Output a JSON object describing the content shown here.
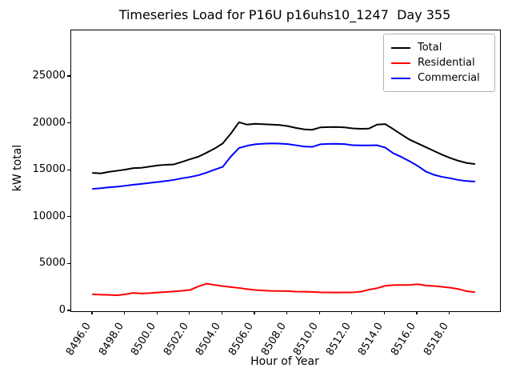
{
  "title": "Timeseries Load for P16U p16uhs10_1247  Day 355",
  "xlabel": "Hour of Year",
  "ylabel": "kW total",
  "legend": [
    {
      "label": "Total",
      "color": "#000000"
    },
    {
      "label": "Residential",
      "color": "#ff0000"
    },
    {
      "label": "Commercial",
      "color": "#0000ff"
    }
  ],
  "chart_data": {
    "type": "line",
    "title": "Timeseries Load for P16U p16uhs10_1247  Day 355",
    "xlabel": "Hour of Year",
    "ylabel": "kW total",
    "legend_position": "upper right",
    "grid": false,
    "xlim": [
      8494.67,
      8521.07
    ],
    "ylim": [
      0,
      29950
    ],
    "x_ticks": [
      {
        "value": 8496,
        "label": "8496.0"
      },
      {
        "value": 8498,
        "label": "8498.0"
      },
      {
        "value": 8500,
        "label": "8500.0"
      },
      {
        "value": 8502,
        "label": "8502.0"
      },
      {
        "value": 8504,
        "label": "8504.0"
      },
      {
        "value": 8506,
        "label": "8506.0"
      },
      {
        "value": 8508,
        "label": "8508.0"
      },
      {
        "value": 8510,
        "label": "8510.0"
      },
      {
        "value": 8512,
        "label": "8512.0"
      },
      {
        "value": 8514,
        "label": "8514.0"
      },
      {
        "value": 8516,
        "label": "8516.0"
      },
      {
        "value": 8518,
        "label": "8518.0"
      }
    ],
    "y_ticks": [
      {
        "value": 0,
        "label": "0"
      },
      {
        "value": 5000,
        "label": "5000"
      },
      {
        "value": 10000,
        "label": "10000"
      },
      {
        "value": 15000,
        "label": "15000"
      },
      {
        "value": 20000,
        "label": "20000"
      },
      {
        "value": 25000,
        "label": "25000"
      }
    ],
    "x": [
      8496.0,
      8496.5,
      8497.0,
      8497.5,
      8498.0,
      8498.5,
      8499.0,
      8499.5,
      8500.0,
      8500.5,
      8501.0,
      8501.5,
      8502.0,
      8502.5,
      8503.0,
      8503.5,
      8504.0,
      8504.5,
      8505.0,
      8505.5,
      8506.0,
      8506.5,
      8507.0,
      8507.5,
      8508.0,
      8508.5,
      8509.0,
      8509.5,
      8510.0,
      8510.5,
      8511.0,
      8511.5,
      8512.0,
      8512.5,
      8513.0,
      8513.5,
      8514.0,
      8514.5,
      8515.0,
      8515.5,
      8516.0,
      8516.5,
      8517.0,
      8517.5,
      8518.0,
      8518.5,
      8519.0,
      8519.5
    ],
    "series": [
      {
        "name": "Total",
        "color": "#000000",
        "values": [
          14750,
          14700,
          14870,
          14980,
          15100,
          15260,
          15300,
          15420,
          15550,
          15620,
          15660,
          15930,
          16220,
          16480,
          16900,
          17350,
          17900,
          18950,
          20150,
          19900,
          19990,
          19950,
          19900,
          19860,
          19740,
          19550,
          19400,
          19350,
          19600,
          19640,
          19650,
          19600,
          19500,
          19460,
          19480,
          19900,
          19960,
          19420,
          18850,
          18300,
          17900,
          17500,
          17100,
          16700,
          16350,
          16050,
          15820,
          15700
        ]
      },
      {
        "name": "Residential",
        "color": "#ff0000",
        "values": [
          1800,
          1760,
          1740,
          1700,
          1800,
          1950,
          1890,
          1930,
          1990,
          2050,
          2110,
          2180,
          2270,
          2650,
          2930,
          2800,
          2680,
          2570,
          2480,
          2360,
          2260,
          2210,
          2170,
          2150,
          2140,
          2090,
          2080,
          2060,
          2020,
          2000,
          1990,
          2000,
          2010,
          2080,
          2300,
          2450,
          2710,
          2780,
          2790,
          2800,
          2880,
          2740,
          2690,
          2600,
          2510,
          2370,
          2140,
          2030
        ]
      },
      {
        "name": "Commercial",
        "color": "#0000ff",
        "values": [
          13050,
          13120,
          13220,
          13280,
          13380,
          13490,
          13580,
          13680,
          13780,
          13890,
          14010,
          14180,
          14320,
          14500,
          14780,
          15100,
          15400,
          16500,
          17400,
          17650,
          17800,
          17870,
          17900,
          17880,
          17820,
          17700,
          17570,
          17520,
          17800,
          17840,
          17850,
          17820,
          17700,
          17680,
          17680,
          17700,
          17450,
          16850,
          16450,
          16000,
          15500,
          14900,
          14550,
          14330,
          14180,
          14000,
          13890,
          13830
        ]
      }
    ]
  }
}
